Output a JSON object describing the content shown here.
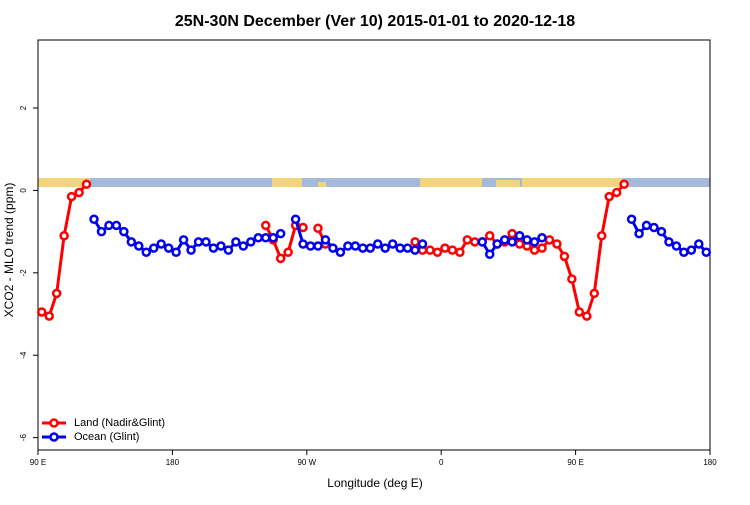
{
  "chart_data": {
    "type": "line",
    "title": "25N-30N December (Ver 10)   2015-01-01 to 2020-12-18",
    "x_label": "Longitude (deg E)",
    "y_label": "XCO2 - MLO trend (ppm)",
    "xlim": [
      90,
      540
    ],
    "ylim": [
      -6.3,
      3.65
    ],
    "xticks": [
      {
        "value": 90,
        "label": "90 E"
      },
      180,
      {
        "value": 270,
        "label": "90 W"
      },
      {
        "value": 360,
        "label": "0"
      },
      {
        "value": 450,
        "label": "90 E"
      },
      {
        "value": 540,
        "label": "180"
      }
    ],
    "yticks": [
      -6,
      -4,
      -2,
      0,
      2
    ],
    "legend": "bottom-left",
    "x": [
      92.5,
      97.5,
      102.5,
      107.5,
      112.5,
      117.5,
      122.5,
      127.5,
      132.5,
      137.5,
      142.5,
      147.5,
      152.5,
      157.5,
      162.5,
      167.5,
      172.5,
      177.5,
      182.5,
      187.5,
      192.5,
      197.5,
      202.5,
      207.5,
      212.5,
      217.5,
      222.5,
      227.5,
      232.5,
      237.5,
      242.5,
      247.5,
      252.5,
      257.5,
      262.5,
      267.5,
      272.5,
      277.5,
      282.5,
      287.5,
      292.5,
      297.5,
      302.5,
      307.5,
      312.5,
      317.5,
      322.5,
      327.5,
      332.5,
      337.5,
      342.5,
      347.5,
      352.5,
      357.5,
      362.5,
      367.5,
      372.5,
      377.5,
      382.5,
      387.5,
      392.5,
      397.5,
      402.5,
      407.5,
      412.5,
      417.5,
      422.5,
      427.5,
      432.5,
      437.5,
      442.5,
      447.5,
      452.5,
      457.5,
      462.5,
      467.5,
      472.5,
      477.5,
      482.5,
      487.5,
      492.5,
      497.5,
      502.5,
      507.5,
      512.5,
      517.5,
      522.5,
      527.5,
      532.5,
      537.5
    ],
    "series": [
      {
        "name": "Land (Nadir&Glint)",
        "color": "#ff0000",
        "values": [
          -2.95,
          -3.05,
          -2.5,
          -1.1,
          -0.15,
          -0.05,
          0.15,
          null,
          null,
          null,
          null,
          null,
          null,
          null,
          null,
          null,
          null,
          null,
          null,
          null,
          null,
          null,
          null,
          null,
          null,
          null,
          null,
          null,
          null,
          null,
          -0.85,
          -1.2,
          -1.65,
          -1.5,
          -0.85,
          -0.9,
          null,
          -0.92,
          -1.3,
          null,
          null,
          null,
          null,
          null,
          null,
          null,
          null,
          null,
          null,
          null,
          -1.25,
          -1.45,
          -1.45,
          -1.5,
          -1.4,
          -1.45,
          -1.5,
          -1.2,
          -1.25,
          -1.25,
          -1.1,
          -1.3,
          -1.25,
          -1.05,
          -1.3,
          -1.35,
          -1.45,
          -1.4,
          -1.2,
          -1.3,
          -1.6,
          -2.15,
          -2.95,
          -3.05,
          -2.5,
          -1.1,
          -0.15,
          -0.05,
          0.15,
          null,
          null,
          null,
          null,
          null,
          null,
          null,
          null,
          null,
          null,
          null
        ]
      },
      {
        "name": "Ocean (Glint)",
        "color": "#0000ee",
        "values": [
          null,
          null,
          null,
          null,
          null,
          null,
          null,
          -0.7,
          -1.0,
          -0.85,
          -0.85,
          -1.0,
          -1.25,
          -1.35,
          -1.5,
          -1.4,
          -1.3,
          -1.4,
          -1.5,
          -1.2,
          -1.45,
          -1.25,
          -1.25,
          -1.4,
          -1.35,
          -1.45,
          -1.25,
          -1.35,
          -1.25,
          -1.15,
          -1.15,
          -1.15,
          -1.05,
          null,
          -0.7,
          -1.3,
          -1.35,
          -1.35,
          -1.2,
          -1.4,
          -1.5,
          -1.35,
          -1.35,
          -1.4,
          -1.4,
          -1.3,
          -1.4,
          -1.3,
          -1.4,
          -1.4,
          -1.45,
          -1.3,
          null,
          null,
          null,
          null,
          null,
          null,
          null,
          -1.25,
          -1.55,
          -1.3,
          -1.2,
          -1.25,
          -1.1,
          -1.2,
          -1.25,
          -1.15,
          null,
          null,
          null,
          null,
          null,
          null,
          null,
          null,
          null,
          null,
          null,
          -0.7,
          -1.05,
          -0.85,
          -0.9,
          -1.0,
          -1.25,
          -1.35,
          -1.5,
          -1.45,
          -1.3,
          -1.5
        ]
      }
    ]
  }
}
